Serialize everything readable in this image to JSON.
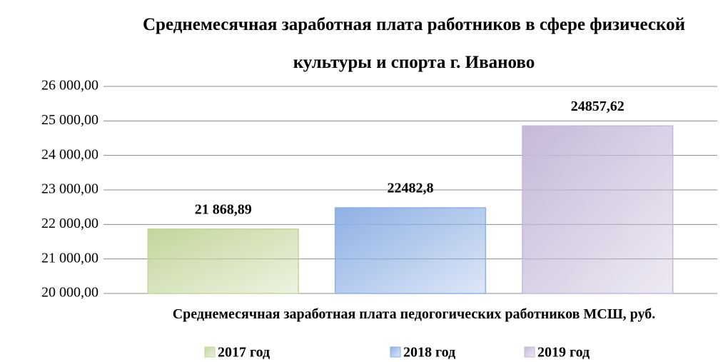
{
  "chart_data": {
    "type": "bar",
    "title": "Среднемесячная заработная плата работников в сфере физической культуры и спорта г. Иваново",
    "categories": [
      "Среднемесячная заработная плата педогогических работников МСШ, руб."
    ],
    "series": [
      {
        "name": "2017 год",
        "color": "#c3d69b",
        "values": [
          21868.89
        ],
        "value_labels": [
          "21 868,89"
        ]
      },
      {
        "name": "2018 год",
        "color": "#8eb0e4",
        "values": [
          22482.8
        ],
        "value_labels": [
          "22482,8"
        ]
      },
      {
        "name": "2019 год",
        "color": "#c5b9d8",
        "values": [
          24857.62
        ],
        "value_labels": [
          "24857,62"
        ]
      }
    ],
    "ylim": [
      20000,
      26000
    ],
    "yticks": [
      {
        "value": 20000,
        "label": "20 000,00"
      },
      {
        "value": 21000,
        "label": "21 000,00"
      },
      {
        "value": 22000,
        "label": "22 000,00"
      },
      {
        "value": 23000,
        "label": "23 000,00"
      },
      {
        "value": 24000,
        "label": "24 000,00"
      },
      {
        "value": 25000,
        "label": "25 000,00"
      },
      {
        "value": 26000,
        "label": "26 000,00"
      }
    ],
    "grid": true,
    "legend": "bottom"
  }
}
